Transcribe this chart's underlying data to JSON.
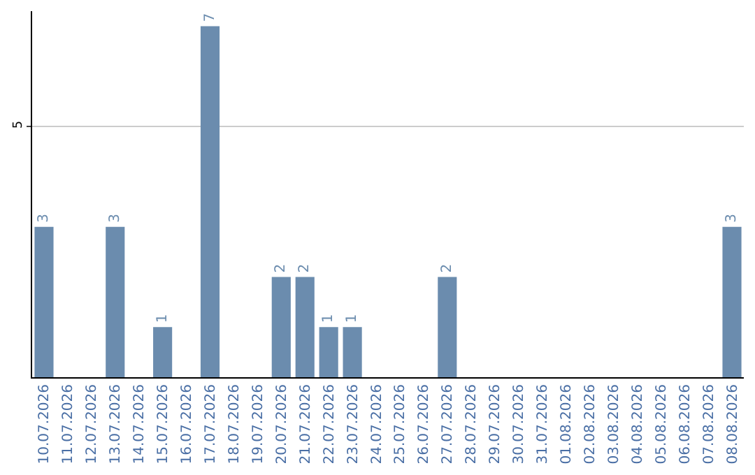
{
  "chart_data": {
    "type": "bar",
    "categories": [
      "10.07.2026",
      "11.07.2026",
      "12.07.2026",
      "13.07.2026",
      "14.07.2026",
      "15.07.2026",
      "16.07.2026",
      "17.07.2026",
      "18.07.2026",
      "19.07.2026",
      "20.07.2026",
      "21.07.2026",
      "22.07.2026",
      "23.07.2026",
      "24.07.2026",
      "25.07.2026",
      "26.07.2026",
      "27.07.2026",
      "28.07.2026",
      "29.07.2026",
      "30.07.2026",
      "31.07.2026",
      "01.08.2026",
      "02.08.2026",
      "03.08.2026",
      "04.08.2026",
      "05.08.2026",
      "06.08.2026",
      "07.08.2026",
      "08.08.2026"
    ],
    "values": [
      3,
      0,
      0,
      3,
      0,
      1,
      0,
      7,
      0,
      0,
      2,
      2,
      1,
      1,
      0,
      0,
      0,
      2,
      0,
      0,
      0,
      0,
      0,
      0,
      0,
      0,
      0,
      0,
      0,
      3
    ],
    "value_labels": [
      "3",
      null,
      null,
      "3",
      null,
      "1",
      null,
      "7",
      null,
      null,
      "2",
      "2",
      "1",
      "1",
      null,
      null,
      null,
      "2",
      null,
      null,
      null,
      null,
      null,
      null,
      null,
      null,
      null,
      null,
      null,
      "3"
    ],
    "color": "#6b8cae",
    "ylim": [
      0,
      7.3
    ],
    "yticks": [
      5
    ],
    "grid": "y"
  }
}
